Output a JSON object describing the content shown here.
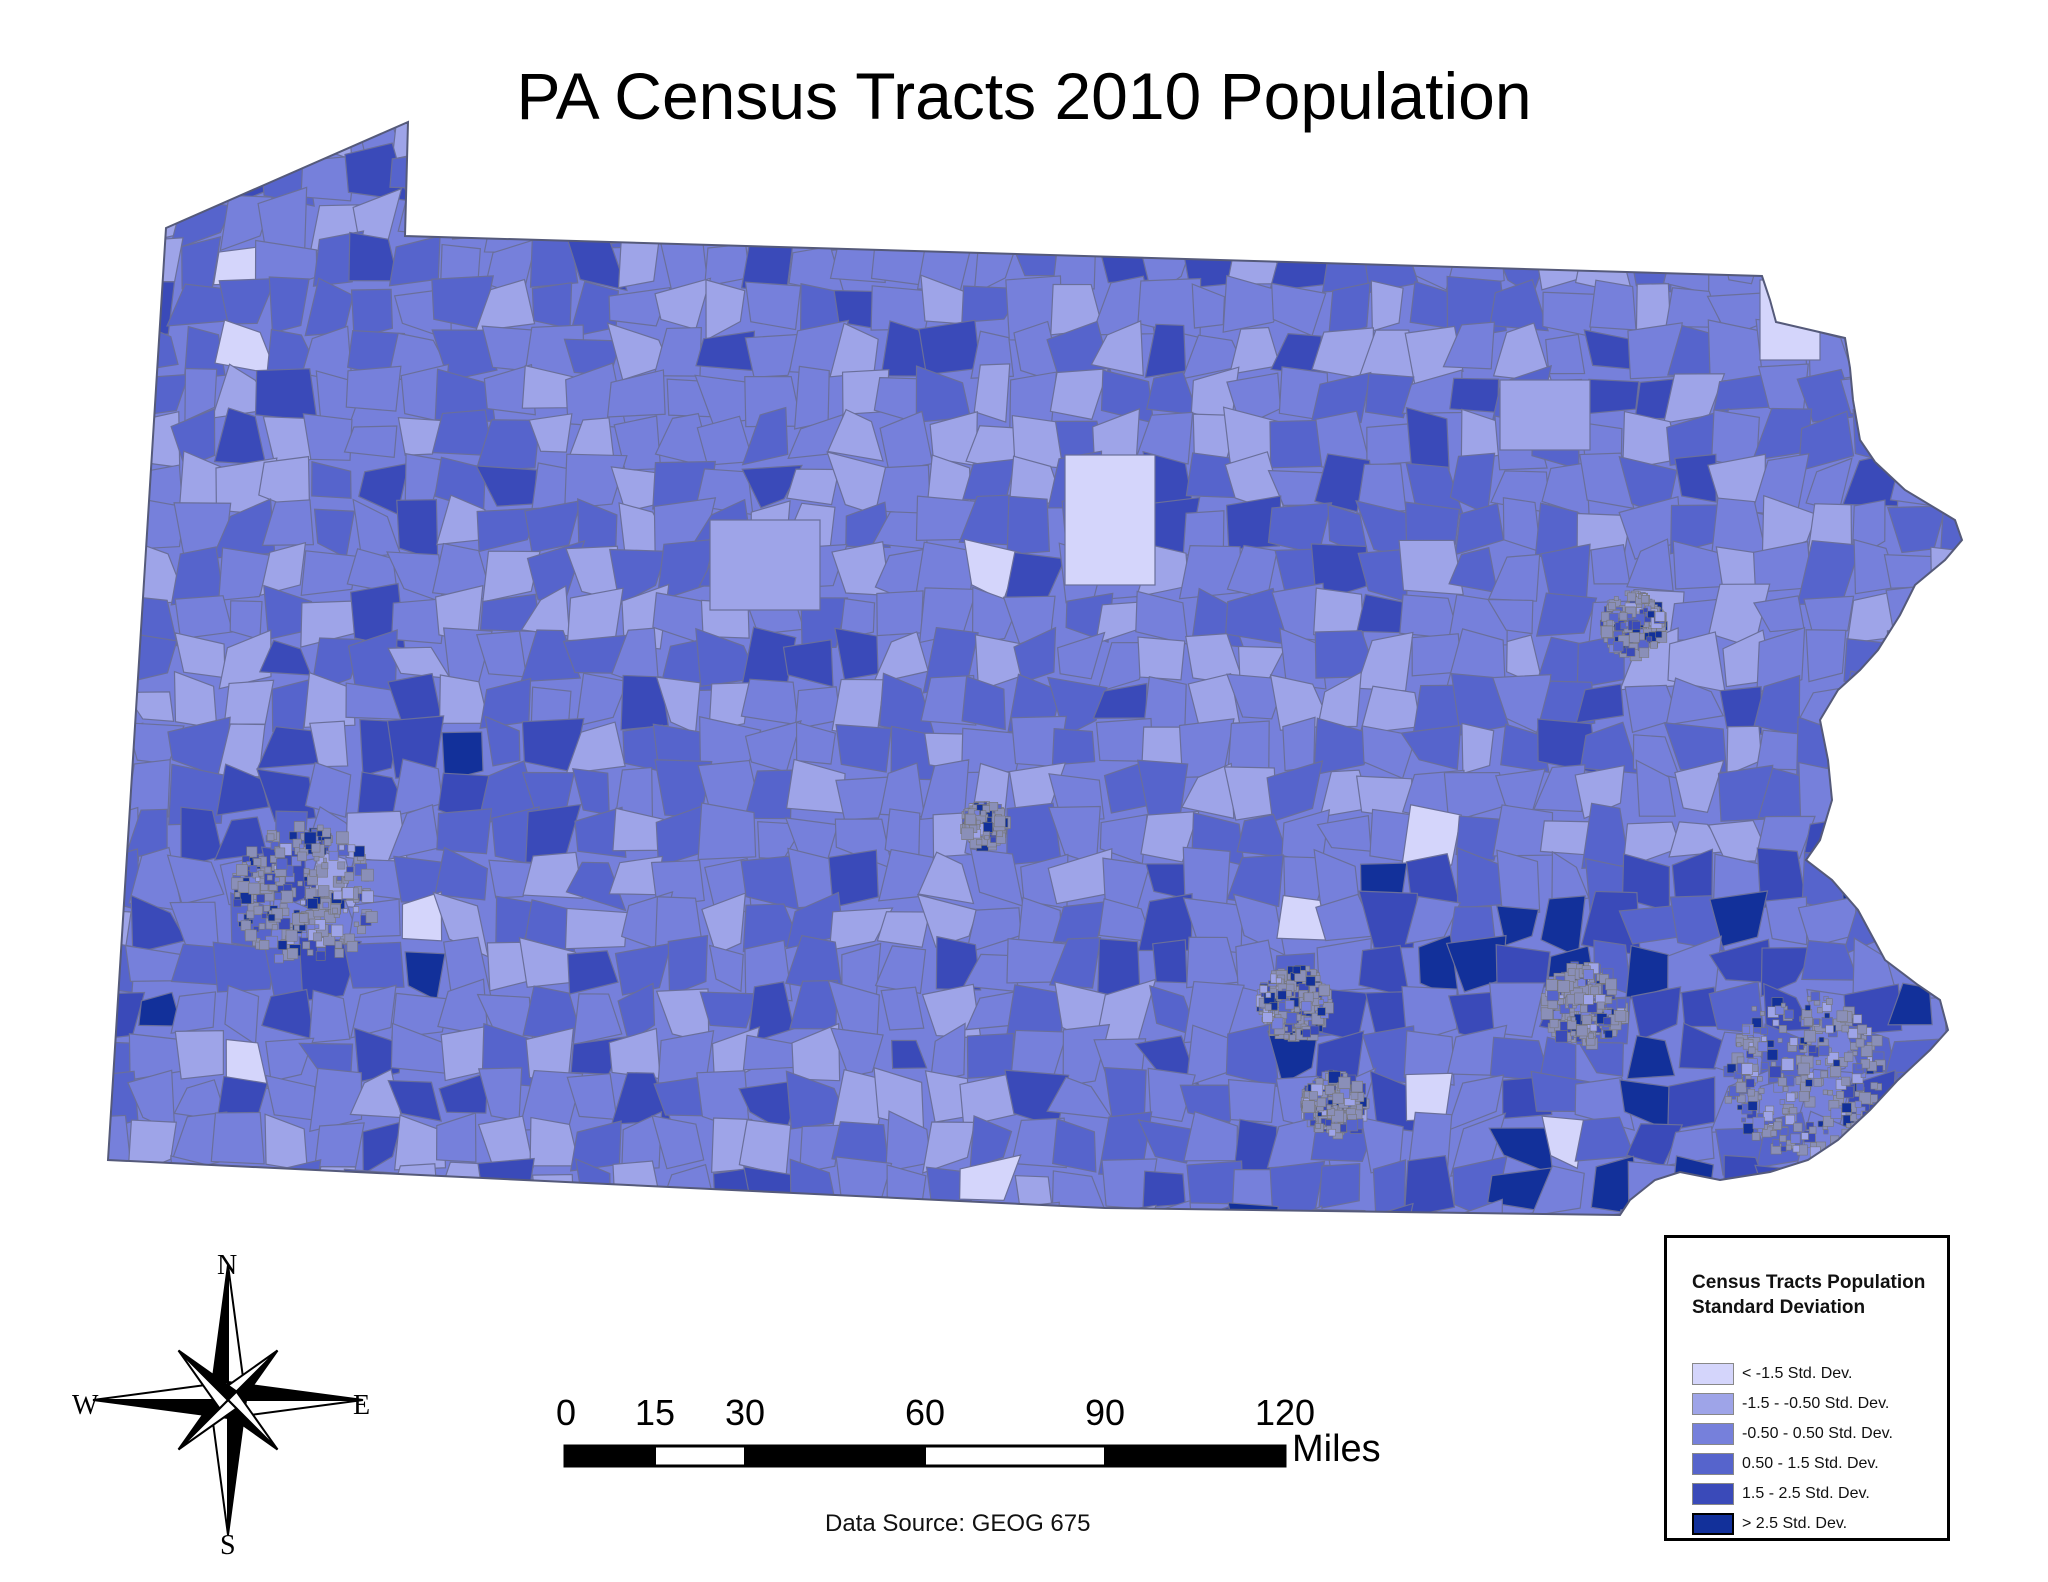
{
  "title": "PA Census Tracts 2010 Population",
  "legend": {
    "title": "Census Tracts Population Standard Deviation",
    "classes": [
      {
        "label": "< -1.5 Std. Dev.",
        "color": "#d4d5fb"
      },
      {
        "label": "-1.5 - -0.50 Std. Dev.",
        "color": "#9ea4e8"
      },
      {
        "label": "-0.50 - 0.50 Std. Dev.",
        "color": "#7680db"
      },
      {
        "label": "0.50 - 1.5 Std. Dev.",
        "color": "#5664cc"
      },
      {
        "label": "1.5 - 2.5 Std. Dev.",
        "color": "#3a4ab9"
      },
      {
        "label": "> 2.5 Std. Dev.",
        "color": "#12309a"
      }
    ]
  },
  "scale_bar": {
    "ticks": [
      "0",
      "15",
      "30",
      "60",
      "90",
      "120"
    ],
    "unit": "Miles"
  },
  "compass": {
    "n": "N",
    "s": "S",
    "e": "E",
    "w": "W"
  },
  "data_source": "Data Source: GEOG 675",
  "colors": {
    "tract_border": "#6a6f9a",
    "state_outline": "#555a7a"
  }
}
